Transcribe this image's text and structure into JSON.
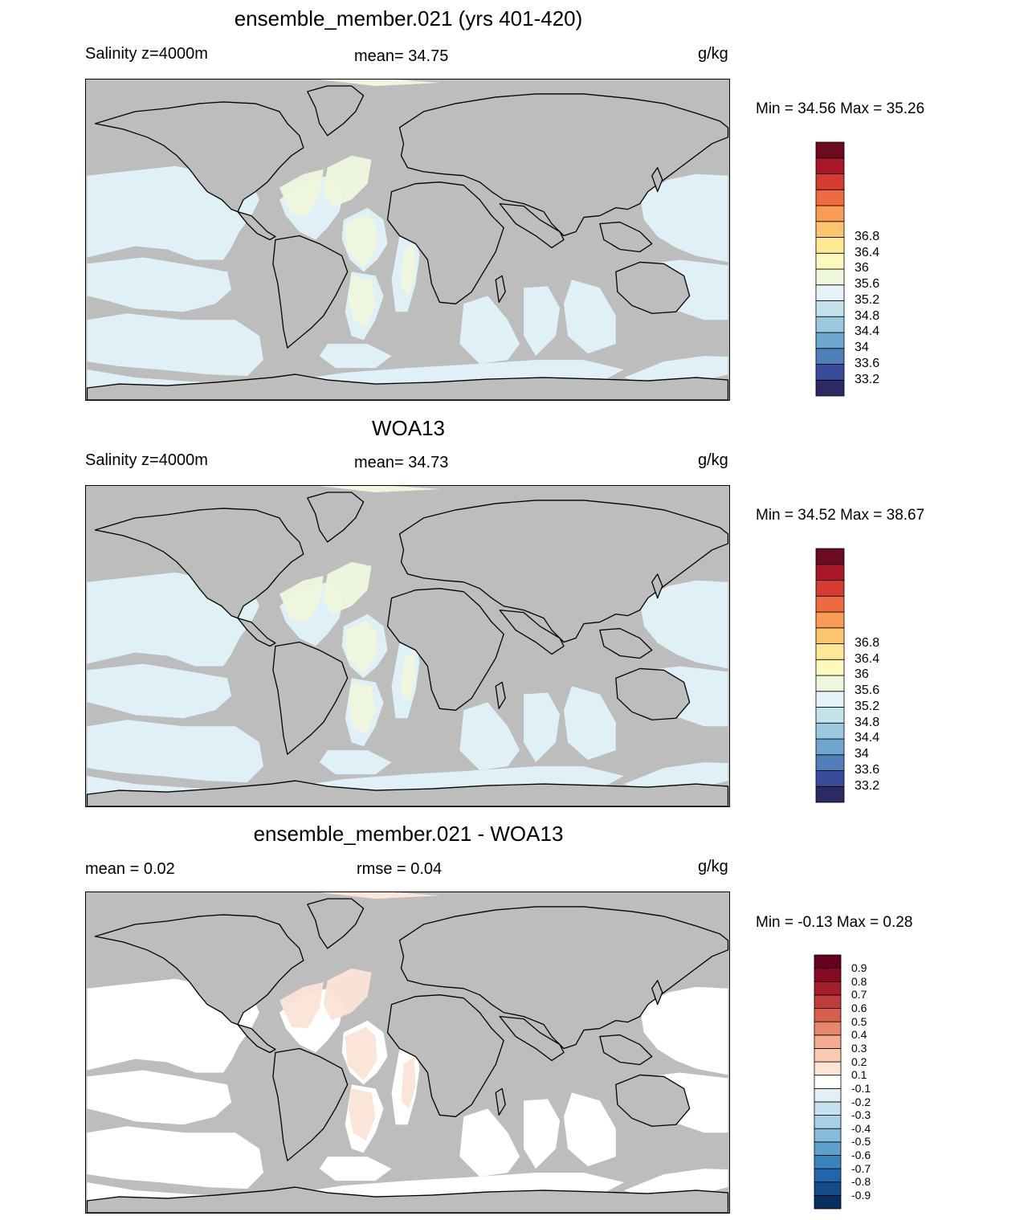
{
  "panels": [
    {
      "title": "ensemble_member.021 (yrs 401-420)",
      "left_text": "Salinity z=4000m",
      "center_text": "mean=  34.75",
      "right_text": "g/kg",
      "minmax": "Min =  34.56 Max =  35.26",
      "fill_color": "#dff1f7",
      "highlight_color": "#eef7dc",
      "colorbar": {
        "colors": [
          "#2b2a63",
          "#3b4b9b",
          "#4e7fb8",
          "#6fa6cf",
          "#9ac9df",
          "#c4e2ec",
          "#e3f3f8",
          "#eef7dc",
          "#fdf8bb",
          "#fee795",
          "#fcc46f",
          "#f99b53",
          "#ee6a40",
          "#d63b2f",
          "#a8182a",
          "#6a0b22"
        ],
        "labels": [
          "33.2",
          "33.6",
          "34",
          "34.4",
          "34.8",
          "35.2",
          "35.6",
          "36",
          "36.4",
          "36.8"
        ]
      }
    },
    {
      "title": "WOA13",
      "left_text": "Salinity z=4000m",
      "center_text": "mean=  34.73",
      "right_text": "g/kg",
      "minmax": "Min =  34.52 Max =  38.67",
      "fill_color": "#dff1f7",
      "highlight_color": "#eef7dc",
      "colorbar": {
        "colors": [
          "#2b2a63",
          "#3b4b9b",
          "#4e7fb8",
          "#6fa6cf",
          "#9ac9df",
          "#c4e2ec",
          "#e3f3f8",
          "#eef7dc",
          "#fdf8bb",
          "#fee795",
          "#fcc46f",
          "#f99b53",
          "#ee6a40",
          "#d63b2f",
          "#a8182a",
          "#6a0b22"
        ],
        "labels": [
          "33.2",
          "33.6",
          "34",
          "34.4",
          "34.8",
          "35.2",
          "35.6",
          "36",
          "36.4",
          "36.8"
        ]
      }
    },
    {
      "title": "ensemble_member.021 - WOA13",
      "left_text": "mean =   0.02",
      "center_text": "rmse =   0.04",
      "right_text": "g/kg",
      "minmax": "Min =  -0.13 Max =   0.28",
      "fill_color": "#ffffff",
      "highlight_color": "#fbe3d6",
      "colorbar": {
        "colors": [
          "#053061",
          "#134c87",
          "#2166ac",
          "#3a84bb",
          "#5da0ca",
          "#86bcd9",
          "#a9d0e4",
          "#c8e1ee",
          "#e4eff5",
          "#ffffff",
          "#fde4d6",
          "#f9cbb0",
          "#f4ab8d",
          "#e8866c",
          "#d6604d",
          "#c13c3d",
          "#a51e2e",
          "#840b23",
          "#67001f"
        ],
        "labels": [
          "-0.9",
          "-0.8",
          "-0.7",
          "-0.6",
          "-0.5",
          "-0.4",
          "-0.3",
          "-0.2",
          "-0.1",
          "0.1",
          "0.2",
          "0.3",
          "0.4",
          "0.5",
          "0.6",
          "0.7",
          "0.8",
          "0.9"
        ]
      }
    }
  ]
}
